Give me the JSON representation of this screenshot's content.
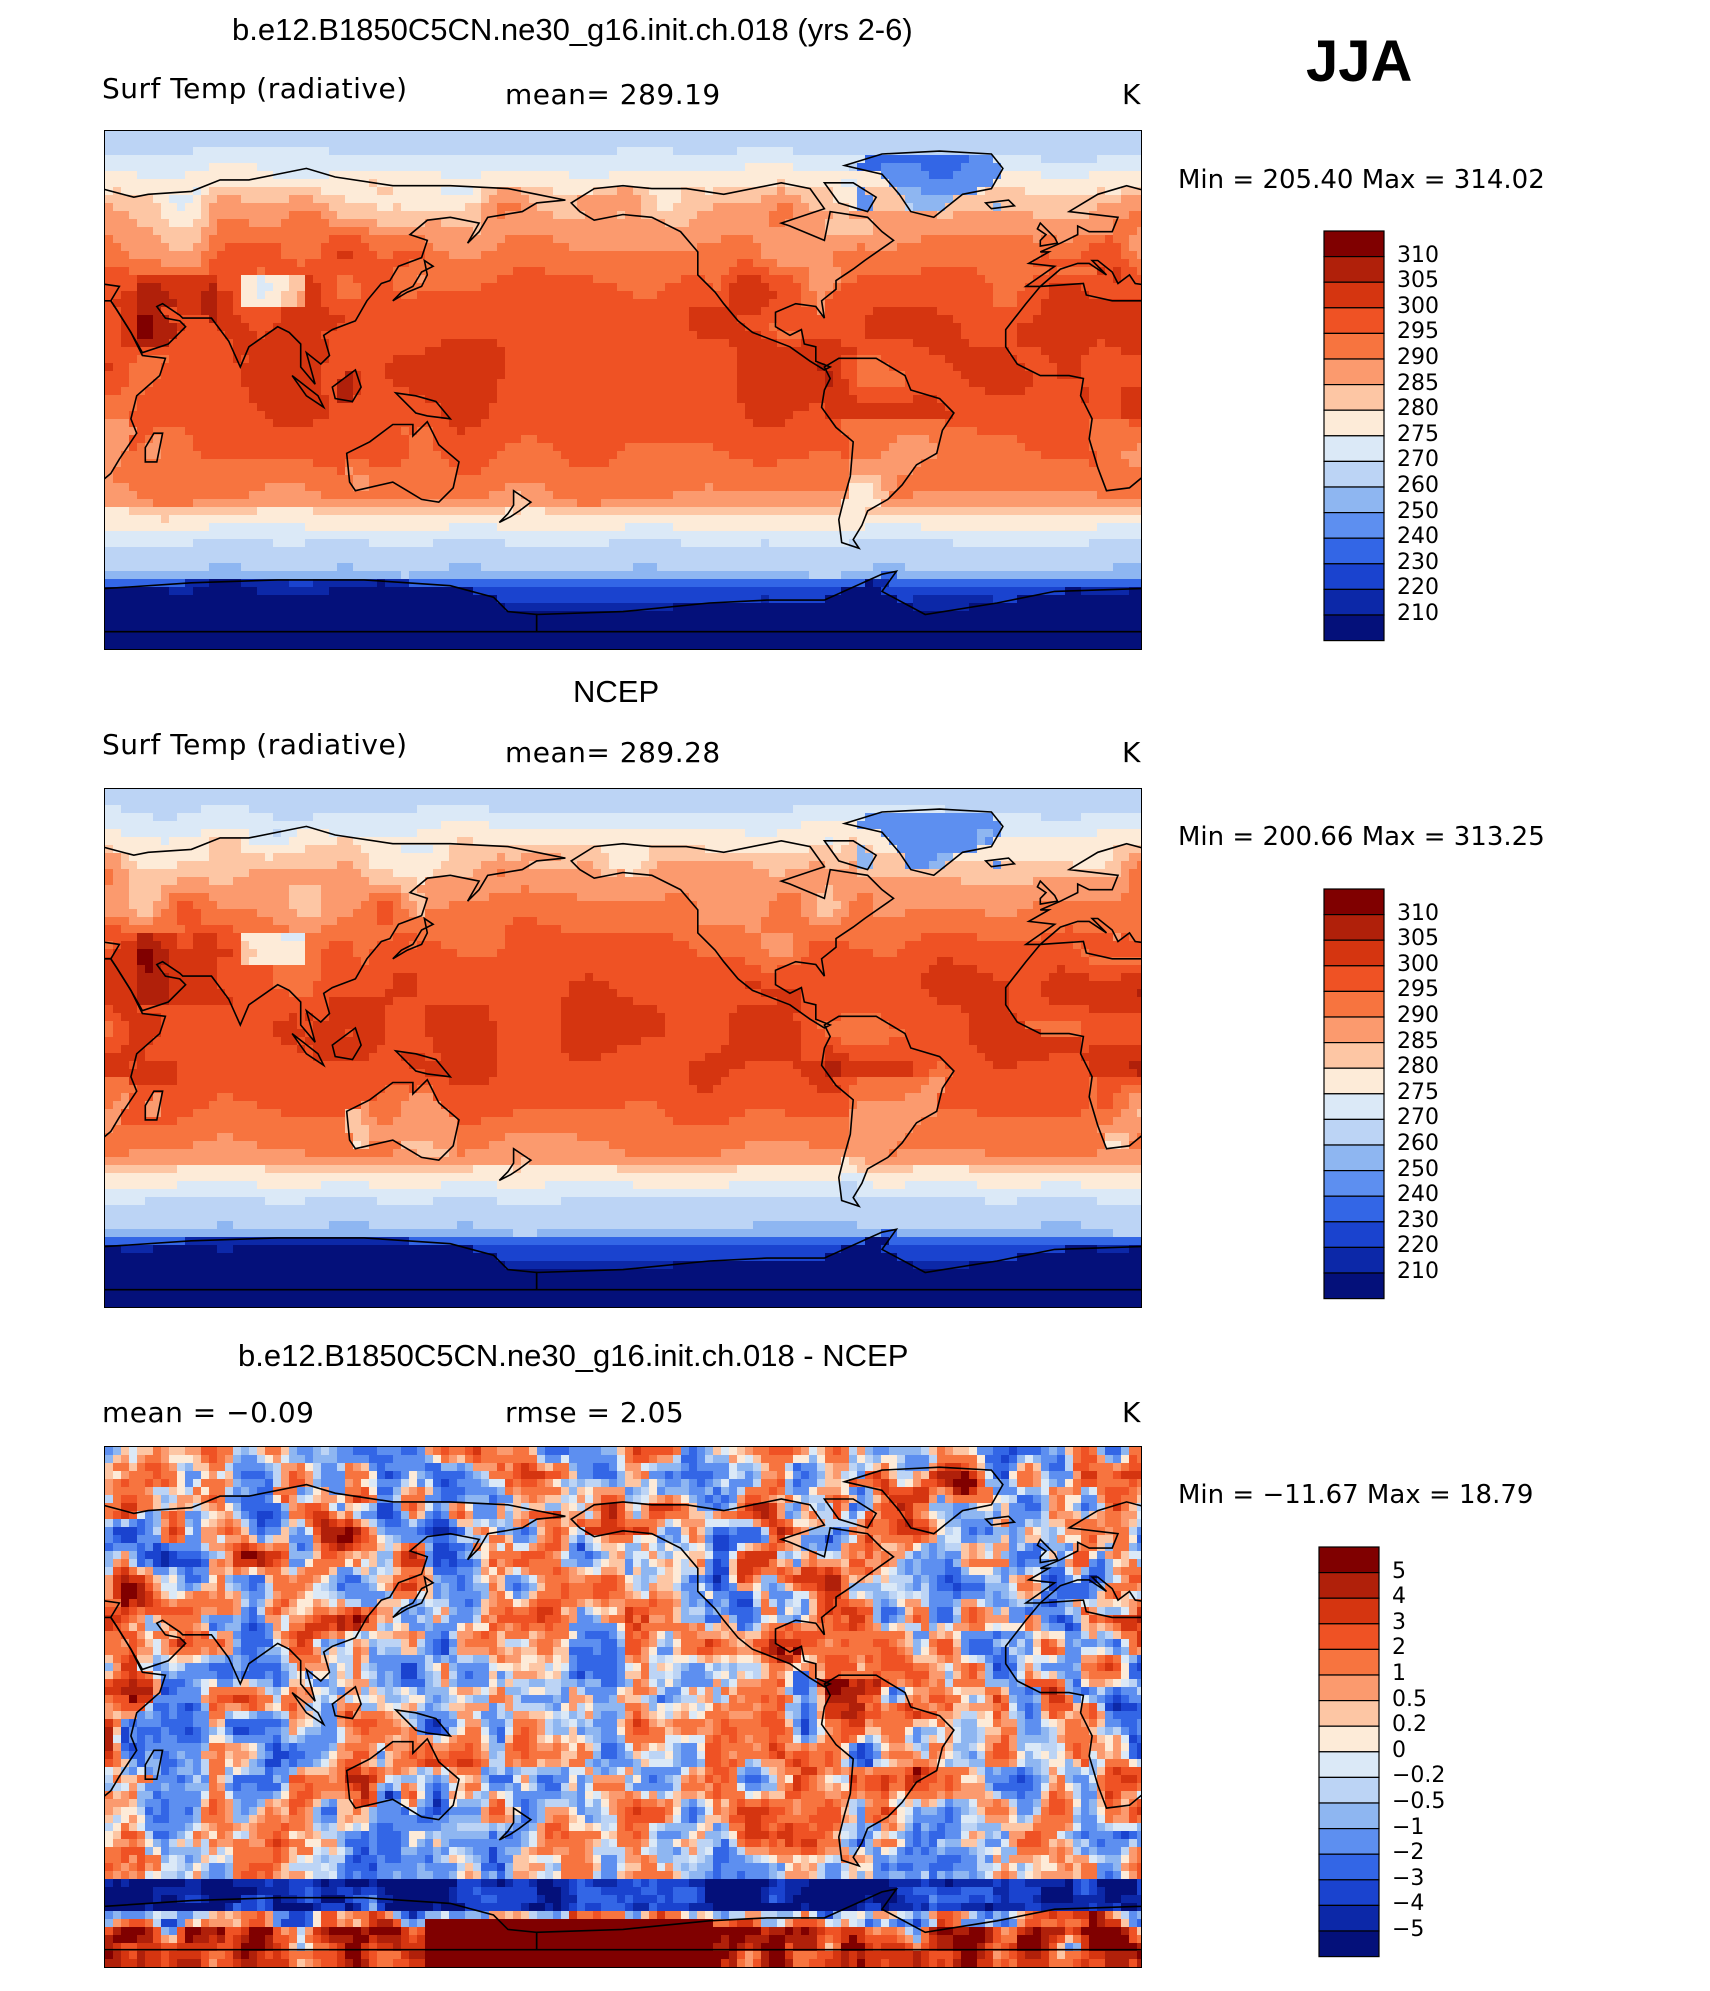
{
  "season": "JJA",
  "panels": [
    {
      "id": "model",
      "title": "b.e12.B1850C5CN.ne30_g16.init.ch.018 (yrs 2-6)",
      "left_label": "Surf Temp (radiative)",
      "center_label": "mean= 289.19",
      "units": "K",
      "minmax": "Min = 205.40 Max = 314.02",
      "colorbar_labels": [
        "310",
        "305",
        "300",
        "295",
        "290",
        "285",
        "280",
        "275",
        "270",
        "260",
        "250",
        "240",
        "230",
        "220",
        "210"
      ]
    },
    {
      "id": "obs",
      "title": "NCEP",
      "left_label": "Surf Temp (radiative)",
      "center_label": "mean= 289.28",
      "units": "K",
      "minmax": "Min = 200.66 Max = 313.25",
      "colorbar_labels": [
        "310",
        "305",
        "300",
        "295",
        "290",
        "285",
        "280",
        "275",
        "270",
        "260",
        "250",
        "240",
        "230",
        "220",
        "210"
      ]
    },
    {
      "id": "diff",
      "title": "b.e12.B1850C5CN.ne30_g16.init.ch.018 - NCEP",
      "left_label": "mean = −0.09",
      "center_label": "rmse = 2.05",
      "units": "K",
      "minmax": "Min = −11.67 Max = 18.79",
      "colorbar_labels": [
        "5",
        "4",
        "3",
        "2",
        "1",
        "0.5",
        "0.2",
        "0",
        "−0.2",
        "−0.5",
        "−1",
        "−2",
        "−3",
        "−4",
        "−5"
      ]
    }
  ],
  "colors": {
    "abs_scale": [
      "#800000",
      "#b0200a",
      "#d53510",
      "#ef5224",
      "#f7743f",
      "#fb9a6e",
      "#fdc6a4",
      "#fdebd8",
      "#dbe9f7",
      "#bcd4f5",
      "#8eb6f1",
      "#5d8ff0",
      "#3366e6",
      "#1a43cf",
      "#0c28a8",
      "#04107a"
    ],
    "diff_scale": [
      "#800000",
      "#b0200a",
      "#d53510",
      "#ef5224",
      "#f7743f",
      "#fb9a6e",
      "#fdc6a4",
      "#fdebd8",
      "#dbe9f7",
      "#bcd4f5",
      "#8eb6f1",
      "#5d8ff0",
      "#3366e6",
      "#1a43cf",
      "#0c28a8",
      "#04107a"
    ]
  },
  "chart_data": [
    {
      "type": "heatmap",
      "title": "b.e12.B1850C5CN.ne30_g16.init.ch.018 (yrs 2-6)",
      "variable": "Surf Temp (radiative)",
      "units": "K",
      "mean": 289.19,
      "min": 205.4,
      "max": 314.02,
      "contour_levels": [
        210,
        220,
        230,
        240,
        250,
        260,
        270,
        275,
        280,
        285,
        290,
        295,
        300,
        305,
        310
      ]
    },
    {
      "type": "heatmap",
      "title": "NCEP",
      "variable": "Surf Temp (radiative)",
      "units": "K",
      "mean": 289.28,
      "min": 200.66,
      "max": 313.25,
      "contour_levels": [
        210,
        220,
        230,
        240,
        250,
        260,
        270,
        275,
        280,
        285,
        290,
        295,
        300,
        305,
        310
      ]
    },
    {
      "type": "heatmap",
      "title": "b.e12.B1850C5CN.ne30_g16.init.ch.018 - NCEP",
      "variable": "difference",
      "units": "K",
      "mean": -0.09,
      "rmse": 2.05,
      "min": -11.67,
      "max": 18.79,
      "contour_levels": [
        -5,
        -4,
        -3,
        -2,
        -1,
        -0.5,
        -0.2,
        0,
        0.2,
        0.5,
        1,
        2,
        3,
        4,
        5
      ]
    }
  ]
}
